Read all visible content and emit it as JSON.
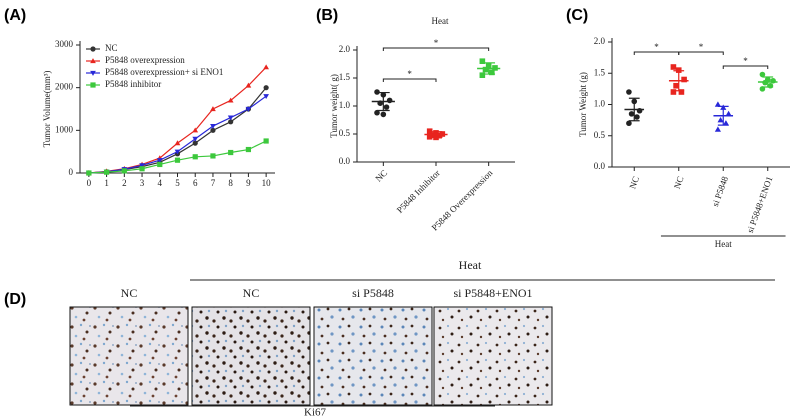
{
  "chart_data": [
    {
      "type": "line",
      "panel_label": "(A)",
      "ylabel": "Tumor Volume(mm³)",
      "x": [
        0,
        1,
        2,
        3,
        4,
        5,
        6,
        7,
        8,
        9,
        10
      ],
      "xlim": [
        -0.5,
        10.5
      ],
      "xticks": [
        0,
        1,
        2,
        3,
        4,
        5,
        6,
        7,
        8,
        9,
        10
      ],
      "ylim": [
        0,
        3000
      ],
      "yticks": [
        0,
        1000,
        2000,
        3000
      ],
      "series": [
        {
          "name": "NC",
          "color": "#333333",
          "marker": "circle",
          "values": [
            0,
            30,
            80,
            150,
            250,
            450,
            700,
            1000,
            1200,
            1500,
            2000
          ]
        },
        {
          "name": "P5848 overexpression",
          "color": "#e8251f",
          "marker": "triangle-up",
          "values": [
            0,
            40,
            100,
            200,
            350,
            700,
            1000,
            1500,
            1700,
            2050,
            2480
          ]
        },
        {
          "name": "P5848 overexpression+ si ENO1",
          "color": "#2828d8",
          "marker": "triangle-down",
          "values": [
            0,
            30,
            90,
            180,
            300,
            500,
            800,
            1100,
            1300,
            1500,
            1800
          ]
        },
        {
          "name": "P5848 inhibitor",
          "color": "#3cc83c",
          "marker": "square",
          "values": [
            0,
            20,
            50,
            100,
            200,
            300,
            380,
            400,
            480,
            550,
            750
          ]
        }
      ]
    },
    {
      "type": "strip",
      "panel_label": "(B)",
      "title": "Heat",
      "ylabel": "Tumor weight( g)",
      "categories": [
        "NC",
        "P5848 Inhibitor",
        "P5848 Overexpression"
      ],
      "colors": [
        "#222222",
        "#e8251f",
        "#3cc83c"
      ],
      "markers": [
        "circle",
        "square",
        "square"
      ],
      "points": [
        [
          1.25,
          1.2,
          1.1,
          1.05,
          0.98,
          0.88,
          0.85
        ],
        [
          0.55,
          0.52,
          0.5,
          0.48,
          0.47,
          0.45,
          0.44
        ],
        [
          1.8,
          1.72,
          1.68,
          1.65,
          1.6,
          1.55
        ]
      ],
      "means": [
        1.08,
        0.49,
        1.67
      ],
      "sd": [
        0.16,
        0.05,
        0.1
      ],
      "ylim": [
        0,
        2
      ],
      "yticks": [
        {
          "value": 0,
          "label": "0.0"
        },
        {
          "value": 0.5,
          "label": "0.5"
        },
        {
          "value": 1,
          "label": "1.0"
        },
        {
          "value": 1.5,
          "label": "1.5"
        },
        {
          "value": 2,
          "label": "2.0"
        }
      ],
      "annotations": [
        {
          "from": 0,
          "to": 1,
          "label": "*"
        },
        {
          "from": 0,
          "to": 2,
          "label": "*"
        }
      ]
    },
    {
      "type": "strip",
      "panel_label": "(C)",
      "ylabel": "Tumor Weight (g)",
      "categories": [
        "NC",
        "NC",
        "si P5848",
        "si P5848+ENO1"
      ],
      "colors": [
        "#222222",
        "#e8251f",
        "#2828d8",
        "#3cc83c"
      ],
      "markers": [
        "circle",
        "square",
        "triangle-up",
        "circle"
      ],
      "points": [
        [
          1.2,
          1.05,
          0.9,
          0.85,
          0.8,
          0.7
        ],
        [
          1.6,
          1.55,
          1.4,
          1.3,
          1.2,
          1.2
        ],
        [
          1.0,
          0.95,
          0.85,
          0.75,
          0.7,
          0.6
        ],
        [
          1.48,
          1.4,
          1.38,
          1.35,
          1.3,
          1.25
        ]
      ],
      "means": [
        0.92,
        1.38,
        0.82,
        1.36
      ],
      "sd": [
        0.18,
        0.16,
        0.15,
        0.08
      ],
      "ylim": [
        0,
        2
      ],
      "yticks": [
        {
          "value": 0,
          "label": "0.0"
        },
        {
          "value": 0.5,
          "label": "0.5"
        },
        {
          "value": 1,
          "label": "1.0"
        },
        {
          "value": 1.5,
          "label": "1.5"
        },
        {
          "value": 2,
          "label": "2.0"
        }
      ],
      "annotations": [
        {
          "from": 0,
          "to": 1,
          "label": "*"
        },
        {
          "from": 1,
          "to": 2,
          "label": "*"
        },
        {
          "from": 2,
          "to": 3,
          "label": "*"
        }
      ],
      "group": {
        "label": "Heat",
        "from": 1,
        "to": 3
      }
    }
  ],
  "panel_d": {
    "label": "(D)",
    "heat_label": "Heat",
    "columns": [
      "NC",
      "NC",
      "si P5848",
      "si P5848+ENO1"
    ],
    "stain": "Ki67"
  }
}
